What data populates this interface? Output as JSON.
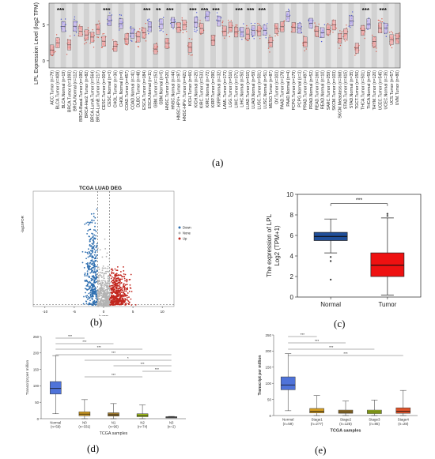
{
  "panels": {
    "a": {
      "label": "(a)",
      "ylabel": "LPL Expression Level (log2 TPM)",
      "yticks": [
        "5",
        "0"
      ],
      "categories": [
        "ACC.Tumor (n=79)",
        "BLCA.Tumor (n=408)",
        "BLCA.Normal (n=19)",
        "BRCA.Tumor (n=1093)",
        "BRCA.Normal (n=112)",
        "BRCA-Basal.Tumor (n=190)",
        "BRCA-Her2.Tumor (n=82)",
        "BRCA-LumA.Tumor (n=564)",
        "BRCA-LumB.Tumor (n=217)",
        "CESC.Tumor (n=304)",
        "CESC.Normal (n=3)",
        "CHOL.Tumor (n=36)",
        "CHOL.Normal (n=9)",
        "COAD.Tumor (n=457)",
        "COAD.Normal (n=41)",
        "DLBC.Tumor (n=48)",
        "ESCA.Tumor (n=184)",
        "ESCA.Normal (n=11)",
        "GBM.Tumor (n=153)",
        "GBM.Normal (n=5)",
        "HNSC.Tumor (n=520)",
        "HNSC.Normal (n=44)",
        "HNSC-HPV+.Tumor (n=97)",
        "HNSC-HPV-.Tumor (n=421)",
        "KICH.Tumor (n=66)",
        "KICH.Normal (n=25)",
        "KIRC.Tumor (n=533)",
        "KIRC.Normal (n=72)",
        "KIRP.Tumor (n=290)",
        "KIRP.Normal (n=32)",
        "LAML.Tumor (n=173)",
        "LGG.Tumor (n=516)",
        "LIHC.Tumor (n=371)",
        "LIHC.Normal (n=50)",
        "LUAD.Tumor (n=515)",
        "LUAD.Normal (n=59)",
        "LUSC.Tumor (n=501)",
        "LUSC.Normal (n=51)",
        "MESO.Tumor (n=87)",
        "OV.Tumor (n=303)",
        "PAAD.Tumor (n=178)",
        "PAAD.Normal (n=4)",
        "PCPG.Tumor (n=179)",
        "PCPG.Normal (n=3)",
        "PRAD.Tumor (n=497)",
        "PRAD.Normal (n=52)",
        "READ.Tumor (n=166)",
        "READ.Normal (n=10)",
        "SARC.Tumor (n=259)",
        "SKCM.Tumor (n=103)",
        "SKCM.Metastasis (n=368)",
        "STAD.Tumor (n=415)",
        "STAD.Normal (n=35)",
        "TGCT.Tumor (n=150)",
        "THCA.Tumor (n=501)",
        "THCA.Normal (n=59)",
        "THYM.Tumor (n=120)",
        "UCEC.Tumor (n=545)",
        "UCEC.Normal (n=35)",
        "UCS.Tumor (n=57)",
        "UVM.Tumor (n=80)"
      ],
      "significance": [
        {
          "after": 2,
          "text": "***"
        },
        {
          "after": 10,
          "text": "***"
        },
        {
          "after": 17,
          "text": "***"
        },
        {
          "after": 19,
          "text": "**"
        },
        {
          "after": 21,
          "text": "***"
        },
        {
          "after": 25,
          "text": "***"
        },
        {
          "after": 27,
          "text": "***"
        },
        {
          "after": 29,
          "text": "***"
        },
        {
          "after": 33,
          "text": "***"
        },
        {
          "after": 35,
          "text": "***"
        },
        {
          "after": 37,
          "text": "***"
        },
        {
          "after": 55,
          "text": "***"
        },
        {
          "after": 58,
          "text": "***"
        }
      ]
    },
    "b": {
      "label": "(b)",
      "title": "TCGA LUAD DEG",
      "xlabel": "logFC",
      "ylabel": "-log10FDR",
      "xticks": [
        "-10",
        "-5",
        "0",
        "5",
        "10"
      ],
      "legend": [
        {
          "name": "Down",
          "color": "#2f6fb0"
        },
        {
          "name": "None",
          "color": "#b3b3b3"
        },
        {
          "name": "Up",
          "color": "#c2271f"
        }
      ]
    },
    "c": {
      "label": "(c)",
      "ylabel_line1": "The expression of LPL",
      "ylabel_line2": "Log2 (TPM+1)",
      "yticks": [
        "0",
        "2",
        "4",
        "6",
        "8",
        "10"
      ],
      "ylim": [
        0,
        10
      ],
      "sig": "***",
      "categories": [
        "Normal",
        "Tumor"
      ],
      "boxes": [
        {
          "name": "Normal",
          "whisker_low": 4.3,
          "q1": 5.5,
          "median": 5.9,
          "q3": 6.3,
          "whisker_high": 7.6,
          "outliers": [
            3.9,
            3.5,
            1.7
          ],
          "color": "#1f4e99"
        },
        {
          "name": "Tumor",
          "whisker_low": 0.2,
          "q1": 2.0,
          "median": 3.1,
          "q3": 4.3,
          "whisker_high": 7.7,
          "outliers": [
            7.9,
            8.1
          ],
          "color": "#ee1111"
        }
      ]
    },
    "d": {
      "label": "(d)",
      "ylabel": "Transcript per million",
      "xlabel": "TCGA samples",
      "yticks": [
        "0",
        "50",
        "100",
        "150",
        "200",
        "250"
      ],
      "ylim": [
        0,
        250
      ],
      "categories": [
        "Normal\n(n=59)",
        "N0\n(n=331)",
        "N1\n(n=96)",
        "N2\n(n=74)",
        "N3\n(n=2)"
      ],
      "boxes": [
        {
          "whisker_low": 15,
          "q1": 75,
          "median": 92,
          "q3": 113,
          "whisker_high": 192,
          "color": "#4f73d9"
        },
        {
          "whisker_low": 0,
          "q1": 9,
          "median": 14,
          "q3": 21,
          "whisker_high": 58,
          "color": "#d8a020"
        },
        {
          "whisker_low": 0,
          "q1": 8,
          "median": 12,
          "q3": 18,
          "whisker_high": 46,
          "color": "#a07a2a"
        },
        {
          "whisker_low": 0,
          "q1": 6,
          "median": 10,
          "q3": 15,
          "whisker_high": 42,
          "color": "#a4c21a"
        },
        {
          "whisker_low": 3,
          "q1": 4,
          "median": 5,
          "q3": 6,
          "whisker_high": 7,
          "color": "#7a7a7a"
        }
      ],
      "comparisons": [
        {
          "from": 0,
          "to": 1,
          "text": "***"
        },
        {
          "from": 0,
          "to": 2,
          "text": "***"
        },
        {
          "from": 0,
          "to": 3,
          "text": "***"
        },
        {
          "from": 0,
          "to": 4,
          "text": "***"
        },
        {
          "from": 1,
          "to": 4,
          "text": "*"
        },
        {
          "from": 2,
          "to": 4,
          "text": "***"
        },
        {
          "from": 3,
          "to": 4,
          "text": "***"
        },
        {
          "from": 1,
          "to": 3,
          "text": "***"
        }
      ]
    },
    "e": {
      "label": "(e)",
      "ylabel": "Transcript per million",
      "xlabel": "TCGA samples",
      "yticks": [
        "0",
        "50",
        "100",
        "150",
        "200",
        "250"
      ],
      "ylim": [
        0,
        250
      ],
      "categories": [
        "Normal\n(n=59)",
        "Stage1\n(n=277)",
        "Stage2\n(n=125)",
        "Stage3\n(n=85)",
        "Stage4\n(n=28)"
      ],
      "boxes": [
        {
          "whisker_low": 15,
          "q1": 80,
          "median": 95,
          "q3": 120,
          "whisker_high": 192,
          "color": "#4f73d9"
        },
        {
          "whisker_low": 0,
          "q1": 8,
          "median": 13,
          "q3": 22,
          "whisker_high": 62,
          "color": "#d8a020"
        },
        {
          "whisker_low": 0,
          "q1": 7,
          "median": 11,
          "q3": 17,
          "whisker_high": 45,
          "color": "#a07a2a"
        },
        {
          "whisker_low": 0,
          "q1": 6,
          "median": 11,
          "q3": 17,
          "whisker_high": 48,
          "color": "#a4c21a"
        },
        {
          "whisker_low": 0,
          "q1": 7,
          "median": 13,
          "q3": 24,
          "whisker_high": 78,
          "color": "#e0532a"
        }
      ],
      "comparisons": [
        {
          "from": 0,
          "to": 1,
          "text": "***"
        },
        {
          "from": 0,
          "to": 2,
          "text": "***"
        },
        {
          "from": 0,
          "to": 3,
          "text": "***"
        },
        {
          "from": 0,
          "to": 4,
          "text": "***"
        }
      ]
    }
  },
  "chart_data": [
    {
      "type": "scatter",
      "panel": "a",
      "ylabel": "LPL Expression Level (log2 TPM)"
    },
    {
      "type": "scatter",
      "panel": "b",
      "title": "TCGA LUAD DEG",
      "xlabel": "logFC",
      "ylabel": "-log10FDR",
      "xlim": [
        -12,
        12
      ]
    },
    {
      "type": "box",
      "panel": "c",
      "categories": [
        "Normal",
        "Tumor"
      ],
      "ylim": [
        0,
        10
      ],
      "series": [
        {
          "values": [
            5.9,
            3.1
          ]
        }
      ]
    },
    {
      "type": "box",
      "panel": "d",
      "xlabel": "TCGA samples",
      "ylabel": "Transcript per million",
      "categories": [
        "Normal",
        "N0",
        "N1",
        "N2",
        "N3"
      ],
      "ylim": [
        0,
        250
      ],
      "series": [
        {
          "values": [
            92,
            14,
            12,
            10,
            5
          ]
        }
      ]
    },
    {
      "type": "box",
      "panel": "e",
      "xlabel": "TCGA samples",
      "ylabel": "Transcript per million",
      "categories": [
        "Normal",
        "Stage1",
        "Stage2",
        "Stage3",
        "Stage4"
      ],
      "ylim": [
        0,
        250
      ],
      "series": [
        {
          "values": [
            95,
            13,
            11,
            11,
            13
          ]
        }
      ]
    }
  ]
}
